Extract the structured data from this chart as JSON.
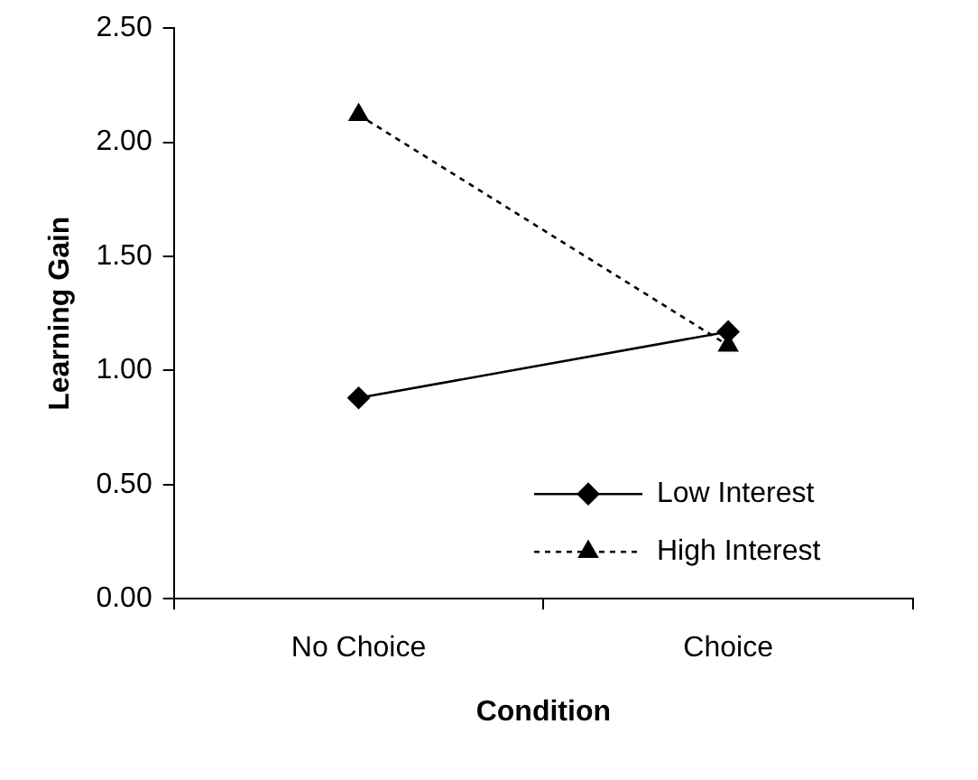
{
  "chart_data": {
    "type": "line",
    "xlabel": "Condition",
    "ylabel": "Learning Gain",
    "categories": [
      "No Choice",
      "Choice"
    ],
    "series": [
      {
        "name": "Low Interest",
        "color": "#000000",
        "values": [
          0.88,
          1.17
        ],
        "marker": "diamond",
        "line_style": "solid"
      },
      {
        "name": "High Interest",
        "color": "#000000",
        "values": [
          2.12,
          1.11
        ],
        "marker": "triangle",
        "line_style": "dotted"
      }
    ],
    "ylim": [
      0,
      2.5
    ],
    "yticks": [
      {
        "value": 0,
        "label": "0.00"
      },
      {
        "value": 0.5,
        "label": "0.50"
      },
      {
        "value": 1,
        "label": "1.00"
      },
      {
        "value": 1.5,
        "label": "1.50"
      },
      {
        "value": 2,
        "label": "2.00"
      },
      {
        "value": 2.5,
        "label": "2.50"
      }
    ],
    "grid": false,
    "legend": "bottom right"
  }
}
